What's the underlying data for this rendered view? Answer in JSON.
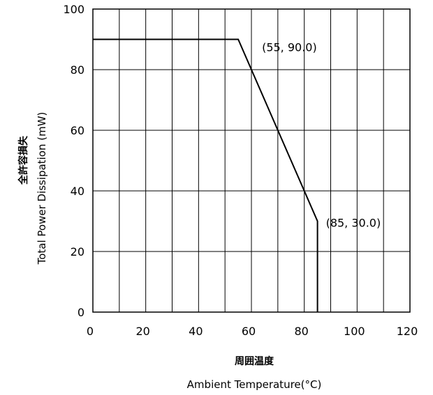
{
  "chart_data": {
    "type": "line",
    "ylabel_jp": "全許容損失",
    "ylabel": "Total Power Dissipation (mW)",
    "xlabel_jp": "周囲温度",
    "xlabel": "Ambient Temperature(°C)",
    "xlim": [
      0,
      120
    ],
    "ylim": [
      0,
      100
    ],
    "x_ticks": [
      0,
      20,
      40,
      60,
      80,
      100,
      120
    ],
    "y_ticks": [
      0,
      20,
      40,
      60,
      80,
      100
    ],
    "x_grid_step": 10,
    "y_grid_step": 20,
    "grid": true,
    "series": [
      {
        "points": [
          [
            0,
            90
          ],
          [
            55,
            90
          ],
          [
            85,
            30
          ],
          [
            85,
            0
          ]
        ]
      }
    ],
    "annotations": [
      {
        "x": 55,
        "y": 90,
        "text": "(55, 90.0)"
      },
      {
        "x": 85,
        "y": 30,
        "text": "(85, 30.0)"
      }
    ]
  }
}
